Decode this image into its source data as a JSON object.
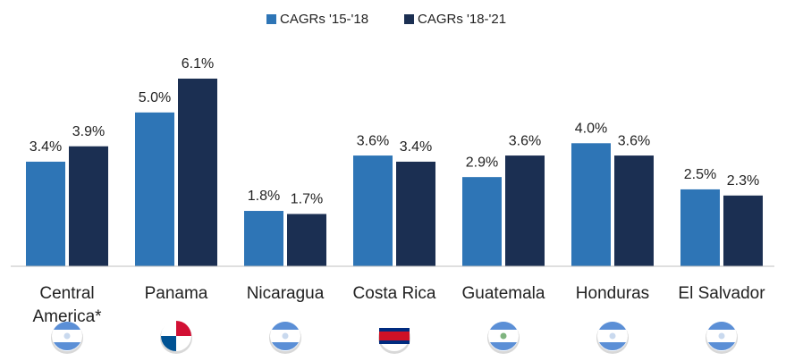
{
  "chart_data": {
    "type": "bar",
    "categories": [
      "Central America*",
      "Panama",
      "Nicaragua",
      "Costa Rica",
      "Guatemala",
      "Honduras",
      "El Salvador"
    ],
    "series": [
      {
        "name": "CAGRs '15-'18",
        "color": "#2e75b6",
        "values": [
          3.4,
          5.0,
          1.8,
          3.6,
          2.9,
          4.0,
          2.5
        ],
        "value_labels": [
          "3.4%",
          "5.0%",
          "1.8%",
          "3.6%",
          "2.9%",
          "4.0%",
          "2.5%"
        ]
      },
      {
        "name": "CAGRs '18-'21",
        "color": "#1b2f52",
        "values": [
          3.9,
          6.1,
          1.7,
          3.4,
          3.6,
          3.6,
          2.3
        ],
        "value_labels": [
          "3.9%",
          "6.1%",
          "1.7%",
          "3.4%",
          "3.6%",
          "3.6%",
          "2.3%"
        ]
      }
    ],
    "ylim": [
      0,
      7
    ],
    "legend": "top"
  }
}
